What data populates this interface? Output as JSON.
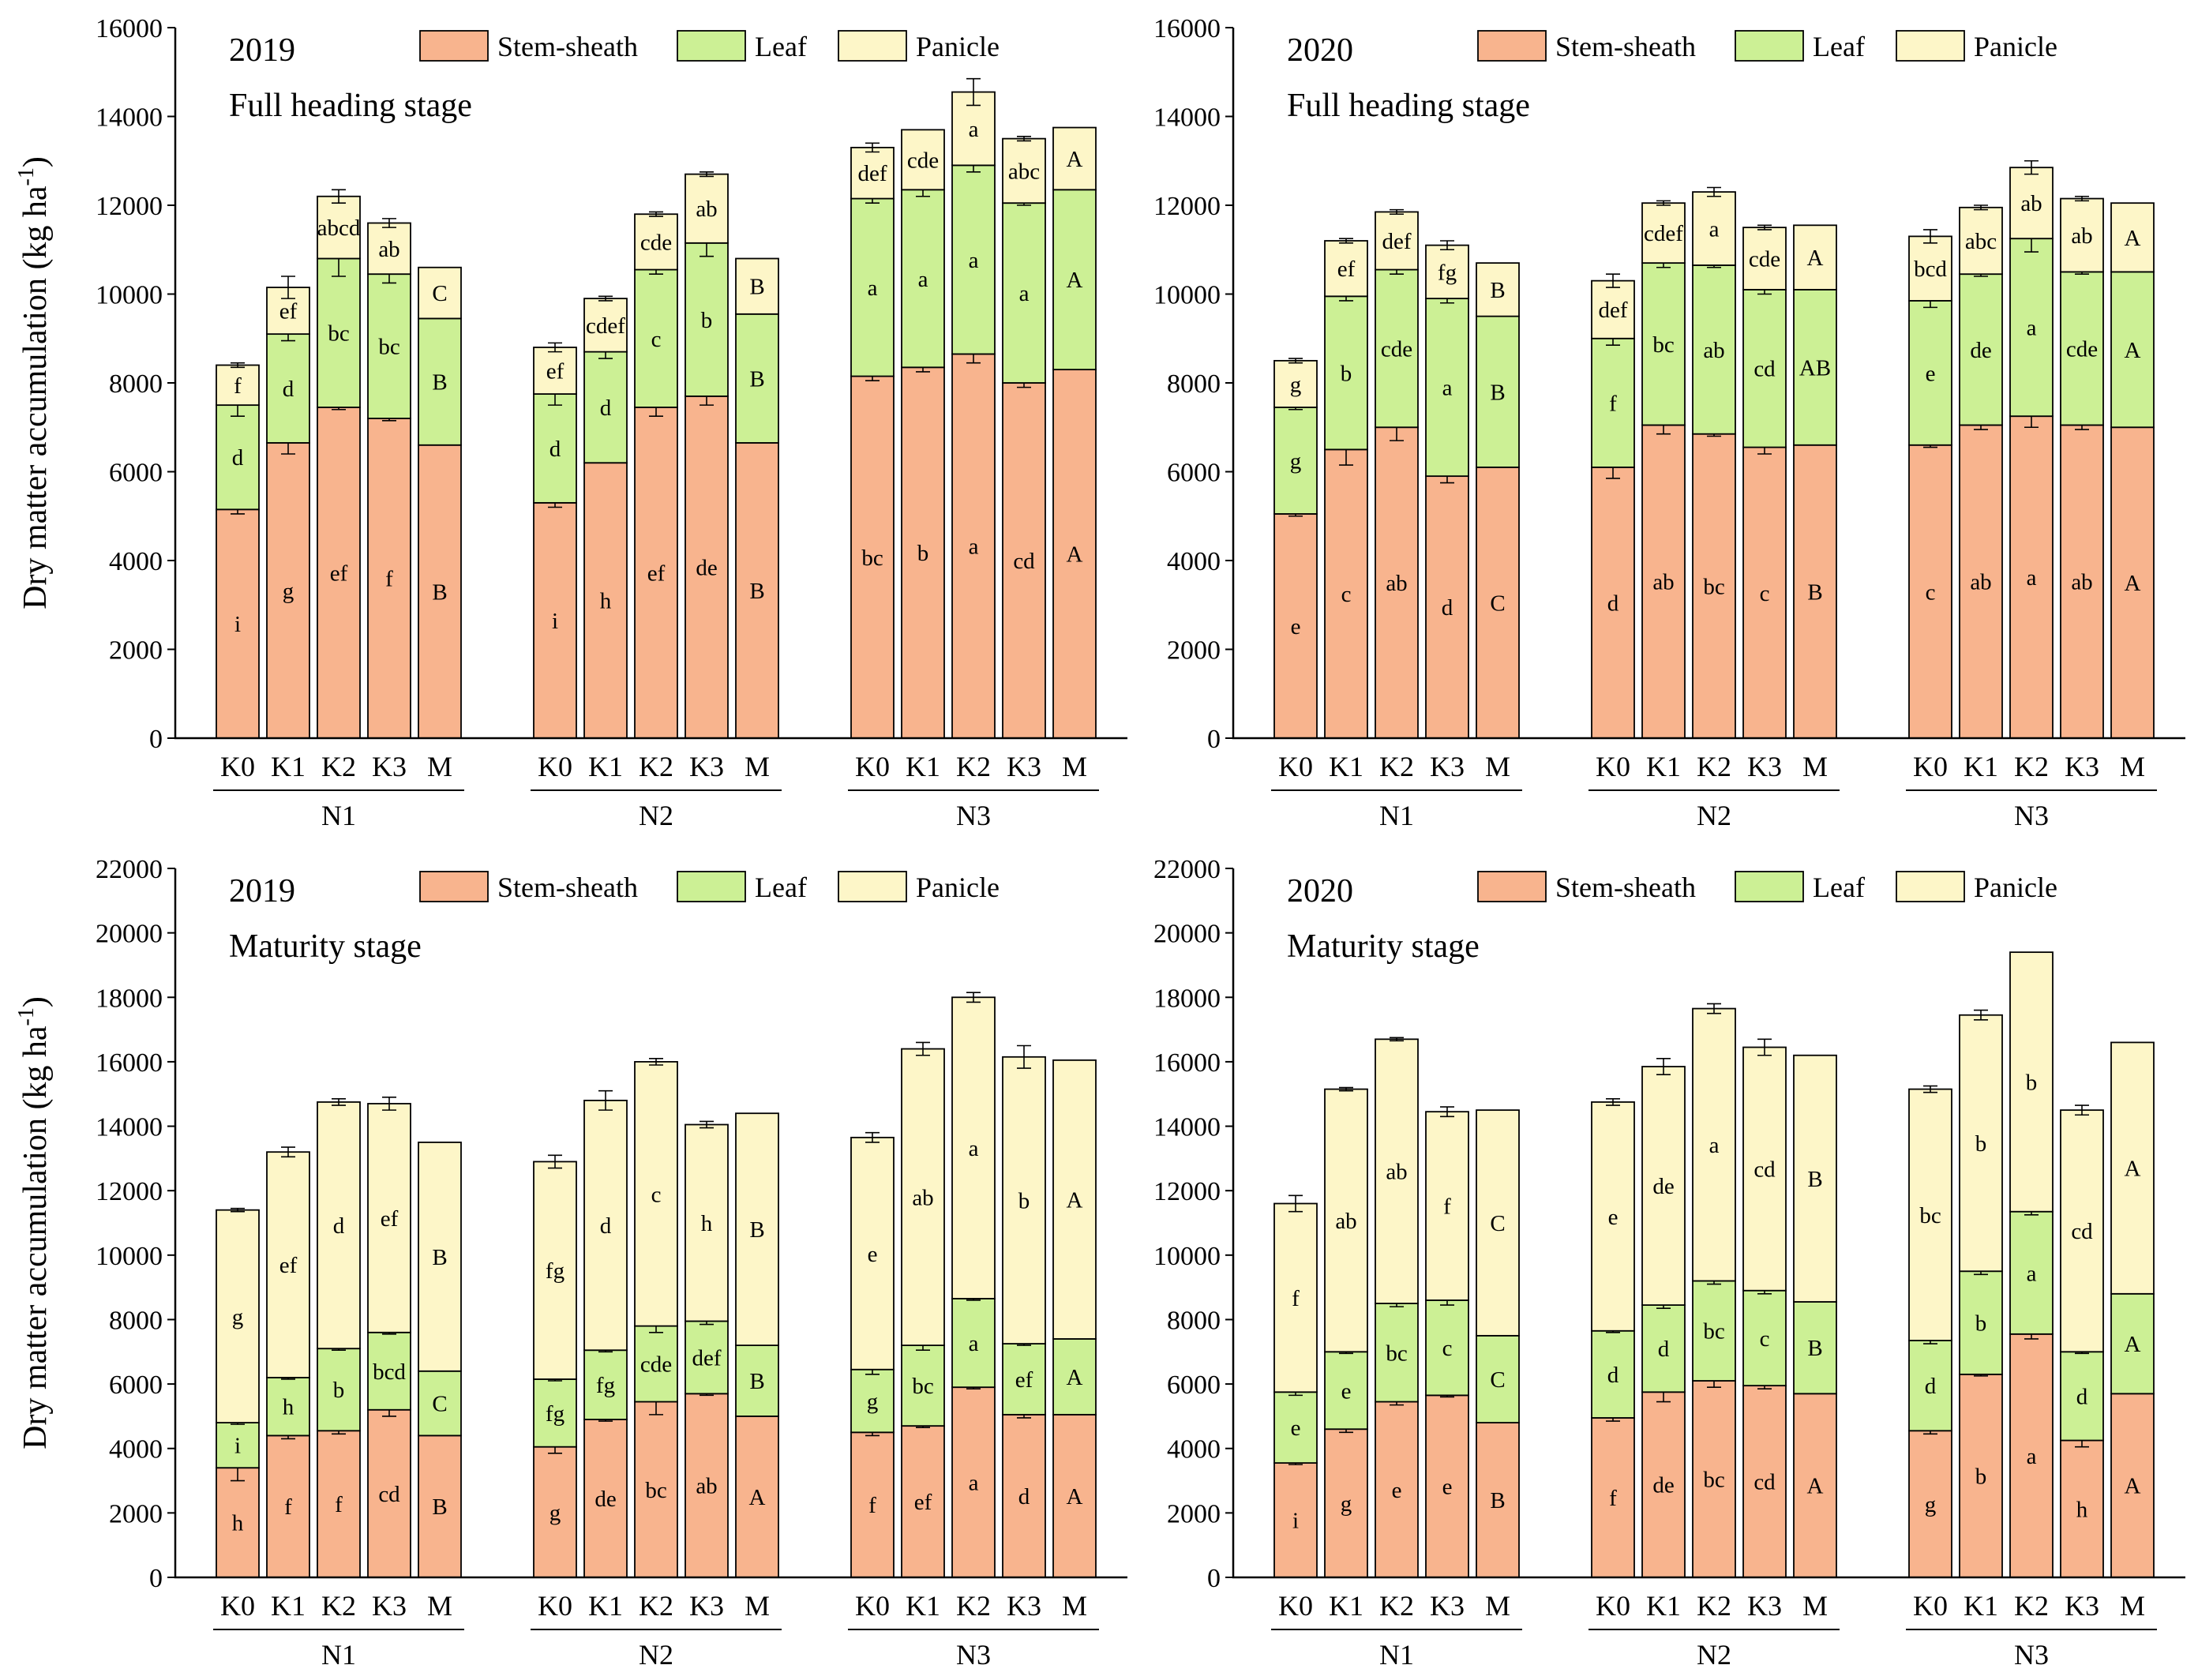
{
  "colors": {
    "stem_sheath": "#f8b48e",
    "leaf": "#ccf095",
    "panicle": "#fdf6c8"
  },
  "chart_data": [
    {
      "type": "bar",
      "stacked": true,
      "year": "2019",
      "stage": "Full heading stage",
      "ylabel": "Dry matter accumulation (kg ha",
      "ylabel_sup": "-1",
      "ylabel_close": ")",
      "ylim": [
        0,
        16000
      ],
      "yticks": [
        0,
        2000,
        4000,
        6000,
        8000,
        10000,
        12000,
        14000,
        16000
      ],
      "ytick_labels": [
        "0",
        "2000",
        "4000",
        "6000",
        "8000",
        "10000",
        "12000",
        "14000",
        "16000"
      ],
      "legend": [
        "Stem-sheath",
        "Leaf",
        "Panicle"
      ],
      "groups": [
        "N1",
        "N2",
        "N3"
      ],
      "categories": [
        "K0",
        "K1",
        "K2",
        "K3",
        "M"
      ],
      "series": [
        {
          "name": "Stem-sheath",
          "values": [
            [
              5150,
              6650,
              7450,
              7200,
              6600
            ],
            [
              5300,
              6200,
              7450,
              7700,
              6650
            ],
            [
              8150,
              8350,
              8650,
              8000,
              8300
            ]
          ],
          "errors": [
            [
              100,
              250,
              50,
              50,
              0
            ],
            [
              100,
              0,
              200,
              200,
              0
            ],
            [
              100,
              100,
              200,
              100,
              0
            ]
          ],
          "labels": [
            [
              "i",
              "g",
              "ef",
              "f",
              "B"
            ],
            [
              "i",
              "h",
              "ef",
              "de",
              "B"
            ],
            [
              "bc",
              "b",
              "a",
              "cd",
              "A"
            ]
          ]
        },
        {
          "name": "Leaf",
          "values": [
            [
              2350,
              2450,
              3350,
              3250,
              2850
            ],
            [
              2450,
              2500,
              3100,
              3450,
              2900
            ],
            [
              4000,
              4000,
              4250,
              4050,
              4050
            ]
          ],
          "errors": [
            [
              250,
              150,
              400,
              200,
              0
            ],
            [
              250,
              150,
              100,
              300,
              0
            ],
            [
              100,
              150,
              150,
              50,
              0
            ]
          ],
          "labels": [
            [
              "d",
              "d",
              "bc",
              "bc",
              "B"
            ],
            [
              "d",
              "d",
              "c",
              "b",
              "B"
            ],
            [
              "a",
              "a",
              "a",
              "a",
              "A"
            ]
          ]
        },
        {
          "name": "Panicle",
          "values": [
            [
              900,
              1050,
              1400,
              1150,
              1150
            ],
            [
              1050,
              1200,
              1250,
              1550,
              1250
            ],
            [
              1150,
              1350,
              1650,
              1450,
              1400
            ]
          ],
          "errors": [
            [
              50,
              250,
              150,
              100,
              0
            ],
            [
              100,
              50,
              50,
              50,
              0
            ],
            [
              100,
              0,
              300,
              50,
              0
            ]
          ],
          "labels": [
            [
              "f",
              "ef",
              "abcd",
              "ab",
              "C"
            ],
            [
              "ef",
              "cdef",
              "cde",
              "ab",
              "B"
            ],
            [
              "def",
              "cde",
              "a",
              "abc",
              "A"
            ]
          ]
        }
      ]
    },
    {
      "type": "bar",
      "stacked": true,
      "year": "2020",
      "stage": "Full heading stage",
      "ylim": [
        0,
        16000
      ],
      "yticks": [
        0,
        2000,
        4000,
        6000,
        8000,
        10000,
        12000,
        14000,
        16000
      ],
      "ytick_labels": [
        "0",
        "2000",
        "4000",
        "6000",
        "8000",
        "10000",
        "12000",
        "14000",
        "16000"
      ],
      "legend": [
        "Stem-sheath",
        "Leaf",
        "Panicle"
      ],
      "groups": [
        "N1",
        "N2",
        "N3"
      ],
      "categories": [
        "K0",
        "K1",
        "K2",
        "K3",
        "M"
      ],
      "series": [
        {
          "name": "Stem-sheath",
          "values": [
            [
              5050,
              6500,
              7000,
              5900,
              6100
            ],
            [
              6100,
              7050,
              6850,
              6550,
              6600
            ],
            [
              6600,
              7050,
              7250,
              7050,
              7000
            ]
          ],
          "errors": [
            [
              50,
              350,
              300,
              150,
              0
            ],
            [
              250,
              200,
              50,
              150,
              0
            ],
            [
              50,
              100,
              250,
              100,
              0
            ]
          ],
          "labels": [
            [
              "e",
              "c",
              "ab",
              "d",
              "C"
            ],
            [
              "d",
              "ab",
              "bc",
              "c",
              "B"
            ],
            [
              "c",
              "ab",
              "a",
              "ab",
              "A"
            ]
          ]
        },
        {
          "name": "Leaf",
          "values": [
            [
              2400,
              3450,
              3550,
              4000,
              3400
            ],
            [
              2900,
              3650,
              3800,
              3550,
              3500
            ],
            [
              3250,
              3400,
              4000,
              3450,
              3500
            ]
          ],
          "errors": [
            [
              50,
              100,
              100,
              100,
              0
            ],
            [
              150,
              100,
              50,
              100,
              0
            ],
            [
              150,
              50,
              300,
              50,
              0
            ]
          ],
          "labels": [
            [
              "g",
              "b",
              "cde",
              "a",
              "B"
            ],
            [
              "f",
              "bc",
              "ab",
              "cd",
              "AB"
            ],
            [
              "e",
              "de",
              "a",
              "cde",
              "A"
            ]
          ]
        },
        {
          "name": "Panicle",
          "values": [
            [
              1050,
              1250,
              1300,
              1200,
              1200
            ],
            [
              1300,
              1350,
              1650,
              1400,
              1450
            ],
            [
              1450,
              1500,
              1600,
              1650,
              1550
            ]
          ],
          "errors": [
            [
              50,
              50,
              50,
              100,
              0
            ],
            [
              150,
              50,
              100,
              50,
              0
            ],
            [
              150,
              50,
              150,
              50,
              0
            ]
          ],
          "labels": [
            [
              "g",
              "ef",
              "def",
              "fg",
              "B"
            ],
            [
              "def",
              "cdef",
              "a",
              "cde",
              "A"
            ],
            [
              "bcd",
              "abc",
              "ab",
              "ab",
              "A"
            ]
          ]
        }
      ]
    },
    {
      "type": "bar",
      "stacked": true,
      "year": "2019",
      "stage": "Maturity stage",
      "ylabel": "Dry matter accumulation (kg ha",
      "ylabel_sup": "-1",
      "ylabel_close": ")",
      "ylim": [
        0,
        22000
      ],
      "yticks": [
        0,
        2000,
        4000,
        6000,
        8000,
        10000,
        12000,
        14000,
        16000,
        18000,
        20000,
        22000
      ],
      "ytick_labels": [
        "0",
        "2000",
        "4000",
        "6000",
        "8000",
        "10000",
        "12000",
        "14000",
        "16000",
        "18000",
        "20000",
        "22000"
      ],
      "legend": [
        "Stem-sheath",
        "Leaf",
        "Panicle"
      ],
      "groups": [
        "N1",
        "N2",
        "N3"
      ],
      "categories": [
        "K0",
        "K1",
        "K2",
        "K3",
        "M"
      ],
      "series": [
        {
          "name": "Stem-sheath",
          "values": [
            [
              3400,
              4400,
              4550,
              5200,
              4400
            ],
            [
              4050,
              4900,
              5450,
              5700,
              5000
            ],
            [
              4500,
              4700,
              5900,
              5050,
              5050
            ]
          ],
          "errors": [
            [
              400,
              100,
              100,
              200,
              0
            ],
            [
              200,
              50,
              400,
              50,
              0
            ],
            [
              100,
              50,
              50,
              100,
              0
            ]
          ],
          "labels": [
            [
              "h",
              "f",
              "f",
              "cd",
              "B"
            ],
            [
              "g",
              "de",
              "bc",
              "ab",
              "A"
            ],
            [
              "f",
              "ef",
              "a",
              "d",
              "A"
            ]
          ]
        },
        {
          "name": "Leaf",
          "values": [
            [
              1400,
              1800,
              2550,
              2400,
              2000
            ],
            [
              2100,
              2150,
              2350,
              2250,
              2200
            ],
            [
              1950,
              2500,
              2750,
              2200,
              2350
            ]
          ],
          "errors": [
            [
              50,
              50,
              50,
              50,
              0
            ],
            [
              50,
              50,
              200,
              100,
              0
            ],
            [
              150,
              150,
              50,
              50,
              0
            ]
          ],
          "labels": [
            [
              "i",
              "h",
              "b",
              "bcd",
              "C"
            ],
            [
              "fg",
              "fg",
              "cde",
              "def",
              "B"
            ],
            [
              "g",
              "bc",
              "a",
              "ef",
              "A"
            ]
          ]
        },
        {
          "name": "Panicle",
          "values": [
            [
              6600,
              7000,
              7650,
              7100,
              7100
            ],
            [
              6750,
              7750,
              8200,
              6100,
              7200
            ],
            [
              7200,
              9200,
              9350,
              8900,
              8650
            ]
          ],
          "errors": [
            [
              50,
              150,
              100,
              200,
              0
            ],
            [
              200,
              300,
              100,
              100,
              0
            ],
            [
              150,
              200,
              150,
              350,
              0
            ]
          ],
          "labels": [
            [
              "g",
              "ef",
              "d",
              "ef",
              "B"
            ],
            [
              "fg",
              "d",
              "c",
              "h",
              "B"
            ],
            [
              "e",
              "ab",
              "a",
              "b",
              "A"
            ]
          ]
        }
      ]
    },
    {
      "type": "bar",
      "stacked": true,
      "year": "2020",
      "stage": "Maturity stage",
      "ylim": [
        0,
        22000
      ],
      "yticks": [
        0,
        2000,
        4000,
        6000,
        8000,
        10000,
        12000,
        14000,
        16000,
        18000,
        20000,
        22000
      ],
      "ytick_labels": [
        "0",
        "2000",
        "4000",
        "6000",
        "8000",
        "10000",
        "12000",
        "14000",
        "16000",
        "18000",
        "20000",
        "22000"
      ],
      "legend": [
        "Stem-sheath",
        "Leaf",
        "Panicle"
      ],
      "groups": [
        "N1",
        "N2",
        "N3"
      ],
      "categories": [
        "K0",
        "K1",
        "K2",
        "K3",
        "M"
      ],
      "series": [
        {
          "name": "Stem-sheath",
          "values": [
            [
              3550,
              4600,
              5450,
              5650,
              4800
            ],
            [
              4950,
              5750,
              6100,
              5950,
              5700
            ],
            [
              4550,
              6300,
              7550,
              4250,
              5700
            ]
          ],
          "errors": [
            [
              50,
              100,
              100,
              50,
              0
            ],
            [
              100,
              300,
              200,
              100,
              0
            ],
            [
              100,
              50,
              150,
              200,
              0
            ]
          ],
          "labels": [
            [
              "i",
              "g",
              "e",
              "e",
              "B"
            ],
            [
              "f",
              "de",
              "bc",
              "cd",
              "A"
            ],
            [
              "g",
              "b",
              "a",
              "h",
              "A"
            ]
          ]
        },
        {
          "name": "Leaf",
          "values": [
            [
              2200,
              2400,
              3050,
              2950,
              2700
            ],
            [
              2700,
              2700,
              3100,
              2950,
              2850
            ],
            [
              2800,
              3200,
              3800,
              2750,
              3100
            ]
          ],
          "errors": [
            [
              100,
              50,
              100,
              150,
              0
            ],
            [
              50,
              100,
              100,
              100,
              0
            ],
            [
              100,
              100,
              100,
              50,
              0
            ]
          ],
          "labels": [
            [
              "e",
              "e",
              "bc",
              "c",
              "C"
            ],
            [
              "d",
              "d",
              "bc",
              "c",
              "B"
            ],
            [
              "d",
              "b",
              "a",
              "d",
              "A"
            ]
          ]
        },
        {
          "name": "Panicle",
          "values": [
            [
              5850,
              8150,
              8200,
              5850,
              7000
            ],
            [
              7100,
              7400,
              8450,
              7550,
              7650
            ],
            [
              7800,
              7950,
              8050,
              7500,
              7800
            ]
          ],
          "errors": [
            [
              250,
              50,
              50,
              150,
              0
            ],
            [
              100,
              250,
              150,
              250,
              0
            ],
            [
              100,
              150,
              0,
              150,
              0
            ]
          ],
          "labels": [
            [
              "f",
              "ab",
              "ab",
              "f",
              "C"
            ],
            [
              "e",
              "de",
              "a",
              "cd",
              "B"
            ],
            [
              "bc",
              "b",
              "b",
              "cd",
              "A"
            ]
          ]
        }
      ]
    }
  ]
}
